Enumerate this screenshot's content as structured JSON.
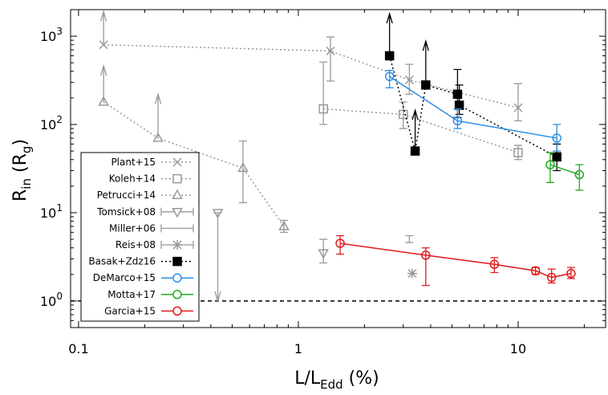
{
  "chart_data": {
    "type": "scatter",
    "xlabel_parts": [
      {
        "text": "L/L"
      },
      {
        "text": "Edd",
        "sub": true
      },
      {
        "text": " (%)"
      }
    ],
    "ylabel_parts": [
      {
        "text": "R"
      },
      {
        "text": "in",
        "sub": true
      },
      {
        "text": " (R"
      },
      {
        "text": "g",
        "sub": true
      },
      {
        "text": ")"
      }
    ],
    "xscale": "log",
    "yscale": "log",
    "xlim": [
      0.092,
      25
    ],
    "ylim": [
      0.5,
      2000
    ],
    "xticks": [
      0.1,
      1,
      10
    ],
    "yticks": [
      {
        "value": 1,
        "label": "10",
        "power": "0"
      },
      {
        "value": 10,
        "label": "10",
        "power": "1"
      },
      {
        "value": 100,
        "label": "10",
        "power": "2"
      },
      {
        "value": 1000,
        "label": "10",
        "power": "3"
      }
    ],
    "reference_line": 1,
    "legend": "lower left",
    "series": [
      {
        "name": "Plant+15",
        "color": "#999999",
        "marker": "x",
        "line": "dotted",
        "x": [
          0.13,
          1.4,
          3.2,
          10
        ],
        "values": [
          800,
          680,
          320,
          155
        ],
        "err_low": [
          null,
          310,
          220,
          110
        ],
        "err_high": [
          null,
          980,
          480,
          290
        ],
        "limit_end": [
          1900,
          null,
          null,
          null
        ]
      },
      {
        "name": "Koleh+14",
        "color": "#999999",
        "marker": "square",
        "line": "dotted",
        "x": [
          1.3,
          3.0,
          10
        ],
        "values": [
          150,
          130,
          48
        ],
        "err_low": [
          100,
          90,
          40
        ],
        "err_high": [
          510,
          180,
          58
        ]
      },
      {
        "name": "Petrucci+14",
        "color": "#999999",
        "marker": "triangle",
        "line": "dotted",
        "x": [
          0.13,
          0.23,
          0.56,
          0.86
        ],
        "values": [
          180,
          70,
          32,
          7
        ],
        "err_low": [
          null,
          null,
          13,
          6
        ],
        "err_high": [
          null,
          null,
          65,
          8.2
        ],
        "limit_end": [
          460,
          220,
          null,
          null
        ]
      },
      {
        "name": "Tomsick+08",
        "color": "#999999",
        "marker": "triangle-down",
        "line": "none",
        "x": [
          0.43,
          1.3
        ],
        "values": [
          10,
          3.5
        ],
        "err_low": [
          null,
          2.7
        ],
        "err_high": [
          null,
          5
        ],
        "limit_end": [
          1,
          null
        ]
      },
      {
        "name": "Miller+06",
        "color": "#999999",
        "marker": "none",
        "line": "none",
        "x": [
          3.2
        ],
        "values": [
          5
        ],
        "err_low": [
          4.6
        ],
        "err_high": [
          5.5
        ]
      },
      {
        "name": "Reis+08",
        "color": "#999999",
        "marker": "asterisk",
        "line": "none",
        "x": [
          3.3
        ],
        "values": [
          2.05
        ]
      },
      {
        "name": "Basak+Zdz16",
        "color": "#000000",
        "marker": "filled-square",
        "line": "dotted",
        "x": [
          2.6,
          3.4,
          3.8,
          5.3,
          5.4,
          15
        ],
        "values": [
          600,
          50,
          280,
          220,
          165,
          43
        ],
        "err_low": [
          null,
          null,
          null,
          120,
          130,
          30
        ],
        "err_high": [
          null,
          null,
          null,
          420,
          280,
          60
        ],
        "limit_end": [
          1800,
          145,
          880,
          null,
          null,
          null
        ]
      },
      {
        "name": "DeMarco+15",
        "color": "#2b8fe8",
        "marker": "circle",
        "line": "solid",
        "x": [
          2.6,
          5.3,
          15
        ],
        "values": [
          350,
          110,
          70
        ],
        "err_low": [
          260,
          90,
          50
        ],
        "err_high": [
          410,
          150,
          100
        ]
      },
      {
        "name": "Motta+17",
        "color": "#22aa22",
        "marker": "circle",
        "line": "solid",
        "x": [
          14,
          19
        ],
        "values": [
          35,
          27
        ],
        "err_low": [
          22,
          18
        ],
        "err_high": [
          48,
          35
        ]
      },
      {
        "name": "Garcia+15",
        "color": "#e41a1c",
        "marker": "circle",
        "line": "solid",
        "x": [
          1.55,
          3.8,
          7.8,
          12,
          14.2,
          17.4
        ],
        "values": [
          4.5,
          3.3,
          2.6,
          2.2,
          1.85,
          2.05
        ],
        "err_low": [
          3.4,
          1.5,
          2.1,
          2.0,
          1.6,
          1.8
        ],
        "err_high": [
          5.5,
          4.0,
          3.1,
          2.4,
          2.3,
          2.4
        ]
      }
    ]
  }
}
